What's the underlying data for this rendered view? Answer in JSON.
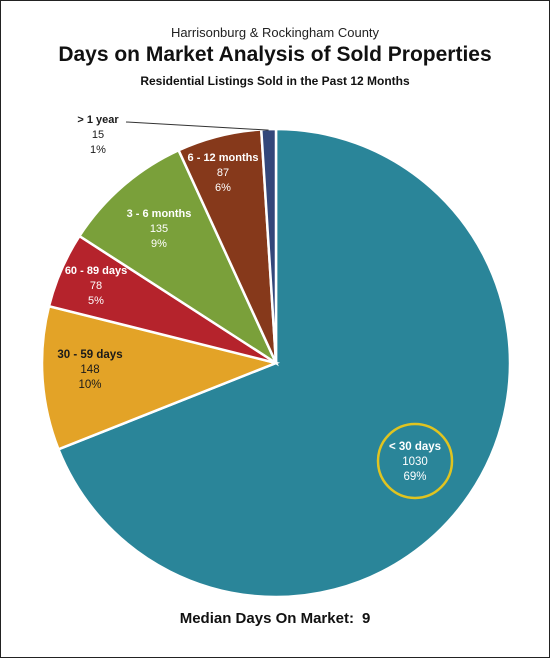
{
  "header": {
    "supertitle": "Harrisonburg & Rockingham County",
    "title": "Days on Market Analysis of Sold Properties",
    "subtitle": "Residential Listings Sold in the Past 12 Months"
  },
  "footer": {
    "label": "Median Days On Market:",
    "value": "9"
  },
  "chart_data": {
    "type": "pie",
    "title": "Days on Market Analysis of Sold Properties",
    "subtitle": "Residential Listings Sold in the Past 12 Months",
    "legend": "none",
    "highlight": "< 30 days",
    "highlight_color": "#e0c420",
    "slices": [
      {
        "label": "< 30 days",
        "value": 1030,
        "value_label": "1030",
        "percent": "69%",
        "color": "#2a8599",
        "text_color": "#ffffff"
      },
      {
        "label": "30 - 59 days",
        "value": 148,
        "value_label": "148",
        "percent": "10%",
        "color": "#e3a327",
        "text_color": "#1a1a1a"
      },
      {
        "label": "60 - 89 days",
        "value": 78,
        "value_label": "78",
        "percent": "5%",
        "color": "#b5232c",
        "text_color": "#ffffff"
      },
      {
        "label": "3 - 6 months",
        "value": 135,
        "value_label": "135",
        "percent": "9%",
        "color": "#7aa03a",
        "text_color": "#ffffff"
      },
      {
        "label": "6 - 12 months",
        "value": 87,
        "value_label": "87",
        "percent": "6%",
        "color": "#86391b",
        "text_color": "#ffffff"
      },
      {
        "label": "> 1 year",
        "value": 15,
        "value_label": "15",
        "percent": "1%",
        "color": "#33477a",
        "text_color": "#1a1a1a"
      }
    ]
  }
}
